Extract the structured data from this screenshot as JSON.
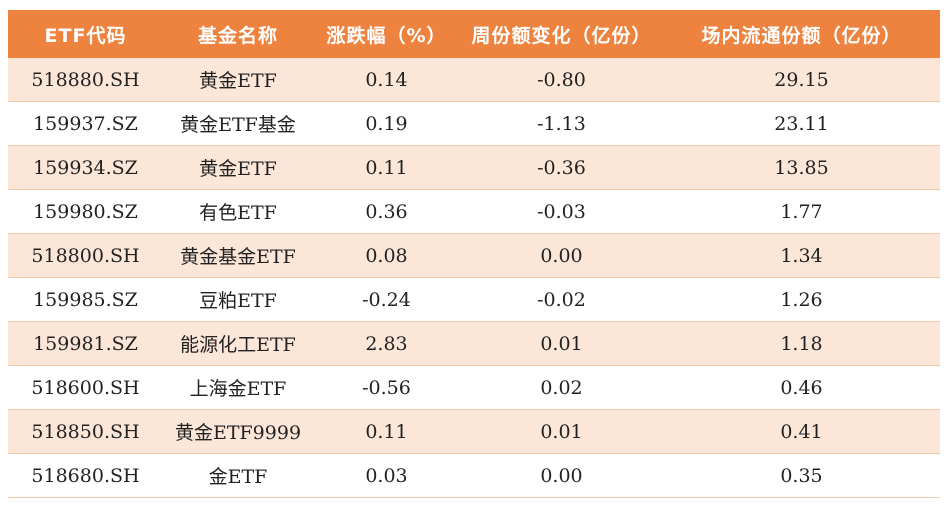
{
  "headers": [
    "ETF代码",
    "基金名称",
    "涨跌幅（%）",
    "周份额变化（亿份）",
    "场内流通份额（亿份）"
  ],
  "rows": [
    {
      "code": "518880.SH",
      "name": "黄金ETF",
      "change": "0.14",
      "weekly": "-0.80",
      "shares": "29.15"
    },
    {
      "code": "159937.SZ",
      "name": "黄金ETF基金",
      "change": "0.19",
      "weekly": "-1.13",
      "shares": "23.11"
    },
    {
      "code": "159934.SZ",
      "name": "黄金ETF",
      "change": "0.11",
      "weekly": "-0.36",
      "shares": "13.85"
    },
    {
      "code": "159980.SZ",
      "name": "有色ETF",
      "change": "0.36",
      "weekly": "-0.03",
      "shares": "1.77"
    },
    {
      "code": "518800.SH",
      "name": "黄金基金ETF",
      "change": "0.08",
      "weekly": "0.00",
      "shares": "1.34"
    },
    {
      "code": "159985.SZ",
      "name": "豆粕ETF",
      "change": "-0.24",
      "weekly": "-0.02",
      "shares": "1.26"
    },
    {
      "code": "159981.SZ",
      "name": "能源化工ETF",
      "change": "2.83",
      "weekly": "0.01",
      "shares": "1.18"
    },
    {
      "code": "518600.SH",
      "name": "上海金ETF",
      "change": "-0.56",
      "weekly": "0.02",
      "shares": "0.46"
    },
    {
      "code": "518850.SH",
      "name": "黄金ETF9999",
      "change": "0.11",
      "weekly": "0.01",
      "shares": "0.41"
    },
    {
      "code": "518680.SH",
      "name": "金ETF",
      "change": "0.03",
      "weekly": "0.00",
      "shares": "0.35"
    }
  ],
  "colors": {
    "header_bg": "#ee833f",
    "stripe_bg": "#fce6d8",
    "header_text": "#ffffff"
  }
}
